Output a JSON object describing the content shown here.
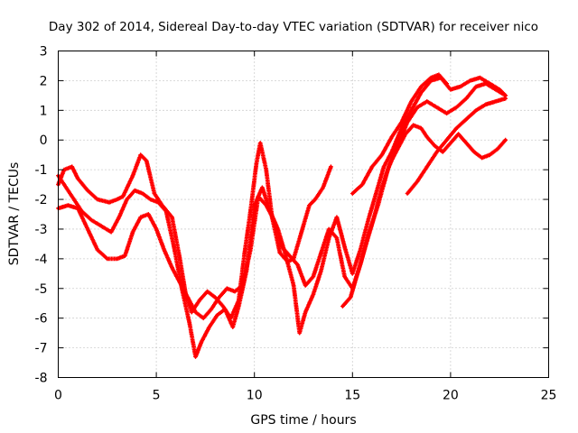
{
  "chart_data": {
    "type": "scatter",
    "title": "Day 302 of 2014, Sidereal Day-to-day VTEC variation (SDTVAR) for receiver nico",
    "xlabel": "GPS time / hours",
    "ylabel": "SDTVAR / TECUs",
    "xlim": [
      0,
      25
    ],
    "ylim": [
      -8,
      3
    ],
    "xticks": [
      "0",
      "5",
      "10",
      "15",
      "20",
      "25"
    ],
    "yticks": [
      "-8",
      "-7",
      "-6",
      "-5",
      "-4",
      "-3",
      "-2",
      "-1",
      "0",
      "1",
      "2",
      "3"
    ],
    "grid": true,
    "marker": "+",
    "colors": {
      "series": "#ff0000",
      "frame": "#000000",
      "grid": "#a0a0a0"
    },
    "series": [
      {
        "values": [
          [
            0.0,
            -1.5
          ],
          [
            0.3,
            -1.0
          ],
          [
            0.7,
            -0.9
          ],
          [
            1.0,
            -1.3
          ],
          [
            1.5,
            -1.7
          ],
          [
            2.0,
            -2.0
          ],
          [
            2.6,
            -2.1
          ],
          [
            3.0,
            -2.0
          ],
          [
            3.3,
            -1.9
          ],
          [
            3.8,
            -1.2
          ],
          [
            4.2,
            -0.5
          ],
          [
            4.5,
            -0.7
          ],
          [
            4.9,
            -1.8
          ],
          [
            5.3,
            -2.2
          ],
          [
            5.8,
            -2.6
          ],
          [
            6.2,
            -4.0
          ],
          [
            6.5,
            -5.2
          ],
          [
            6.8,
            -5.8
          ],
          [
            7.2,
            -5.4
          ],
          [
            7.6,
            -5.1
          ],
          [
            8.0,
            -5.3
          ],
          [
            8.4,
            -5.6
          ],
          [
            8.8,
            -6.0
          ],
          [
            9.2,
            -5.4
          ],
          [
            9.5,
            -3.8
          ],
          [
            9.8,
            -2.4
          ],
          [
            10.1,
            -0.8
          ],
          [
            10.3,
            -0.1
          ],
          [
            10.6,
            -1.0
          ],
          [
            10.9,
            -2.6
          ],
          [
            11.3,
            -3.8
          ],
          [
            11.7,
            -4.1
          ],
          [
            12.0,
            -4.0
          ],
          [
            12.4,
            -3.1
          ],
          [
            12.8,
            -2.2
          ],
          [
            13.1,
            -2.0
          ],
          [
            13.5,
            -1.6
          ],
          [
            13.9,
            -0.9
          ]
        ]
      },
      {
        "values": [
          [
            0.0,
            -1.2
          ],
          [
            0.4,
            -1.6
          ],
          [
            0.8,
            -2.0
          ],
          [
            1.2,
            -2.4
          ],
          [
            1.7,
            -2.7
          ],
          [
            2.2,
            -2.9
          ],
          [
            2.7,
            -3.1
          ],
          [
            3.1,
            -2.6
          ],
          [
            3.5,
            -2.0
          ],
          [
            3.9,
            -1.7
          ],
          [
            4.3,
            -1.8
          ],
          [
            4.7,
            -2.0
          ],
          [
            5.1,
            -2.1
          ],
          [
            5.5,
            -2.4
          ],
          [
            5.9,
            -3.6
          ],
          [
            6.3,
            -5.0
          ],
          [
            6.7,
            -6.2
          ],
          [
            7.0,
            -7.3
          ],
          [
            7.3,
            -6.8
          ],
          [
            7.7,
            -6.3
          ],
          [
            8.1,
            -5.9
          ],
          [
            8.5,
            -5.7
          ],
          [
            8.9,
            -6.3
          ],
          [
            9.2,
            -5.6
          ],
          [
            9.6,
            -4.4
          ],
          [
            10.0,
            -2.2
          ],
          [
            10.4,
            -1.6
          ],
          [
            10.8,
            -2.4
          ],
          [
            11.2,
            -3.0
          ],
          [
            11.6,
            -3.9
          ],
          [
            12.0,
            -4.9
          ],
          [
            12.3,
            -6.5
          ],
          [
            12.6,
            -5.8
          ],
          [
            13.0,
            -5.2
          ],
          [
            13.4,
            -4.4
          ],
          [
            13.8,
            -3.3
          ],
          [
            14.2,
            -2.6
          ],
          [
            14.6,
            -3.6
          ],
          [
            15.0,
            -4.5
          ],
          [
            15.4,
            -3.7
          ],
          [
            15.8,
            -2.7
          ],
          [
            16.2,
            -1.8
          ],
          [
            16.6,
            -0.9
          ],
          [
            17.0,
            -0.4
          ],
          [
            17.5,
            0.4
          ],
          [
            18.0,
            1.0
          ],
          [
            18.5,
            1.6
          ],
          [
            19.0,
            2.0
          ],
          [
            19.5,
            2.1
          ],
          [
            20.0,
            1.7
          ],
          [
            20.5,
            1.8
          ],
          [
            21.0,
            2.0
          ],
          [
            21.5,
            2.1
          ],
          [
            22.0,
            1.9
          ],
          [
            22.5,
            1.7
          ],
          [
            22.8,
            1.5
          ]
        ]
      },
      {
        "values": [
          [
            0.0,
            -2.3
          ],
          [
            0.5,
            -2.2
          ],
          [
            1.0,
            -2.3
          ],
          [
            1.5,
            -3.0
          ],
          [
            2.0,
            -3.7
          ],
          [
            2.5,
            -4.0
          ],
          [
            3.0,
            -4.0
          ],
          [
            3.4,
            -3.9
          ],
          [
            3.8,
            -3.1
          ],
          [
            4.2,
            -2.6
          ],
          [
            4.6,
            -2.5
          ],
          [
            5.0,
            -3.0
          ],
          [
            5.4,
            -3.7
          ],
          [
            5.8,
            -4.3
          ],
          [
            6.2,
            -4.8
          ],
          [
            6.6,
            -5.3
          ],
          [
            7.0,
            -5.8
          ],
          [
            7.4,
            -6.0
          ],
          [
            7.8,
            -5.7
          ],
          [
            8.2,
            -5.3
          ],
          [
            8.6,
            -5.0
          ],
          [
            9.0,
            -5.1
          ],
          [
            9.4,
            -4.9
          ],
          [
            9.8,
            -3.7
          ],
          [
            10.2,
            -1.9
          ],
          [
            10.6,
            -2.2
          ],
          [
            11.0,
            -2.7
          ],
          [
            11.4,
            -3.6
          ],
          [
            11.8,
            -3.9
          ],
          [
            12.2,
            -4.2
          ],
          [
            12.6,
            -4.9
          ],
          [
            13.0,
            -4.6
          ],
          [
            13.4,
            -3.8
          ],
          [
            13.8,
            -3.0
          ],
          [
            14.2,
            -3.3
          ],
          [
            14.6,
            -4.6
          ],
          [
            15.0,
            -5.0
          ],
          [
            15.4,
            -4.2
          ],
          [
            15.8,
            -3.2
          ],
          [
            16.3,
            -2.2
          ],
          [
            16.8,
            -1.0
          ],
          [
            17.3,
            -0.2
          ],
          [
            17.8,
            0.6
          ],
          [
            18.3,
            1.1
          ],
          [
            18.8,
            1.3
          ],
          [
            19.3,
            1.1
          ],
          [
            19.8,
            0.9
          ],
          [
            20.3,
            1.1
          ],
          [
            20.8,
            1.4
          ],
          [
            21.3,
            1.8
          ],
          [
            21.8,
            1.9
          ],
          [
            22.3,
            1.7
          ],
          [
            22.8,
            1.5
          ]
        ]
      },
      {
        "values": [
          [
            14.5,
            -5.6
          ],
          [
            14.9,
            -5.3
          ],
          [
            15.3,
            -4.4
          ],
          [
            15.7,
            -3.5
          ],
          [
            16.1,
            -2.6
          ],
          [
            16.5,
            -1.6
          ],
          [
            16.9,
            -0.8
          ],
          [
            17.3,
            -0.3
          ],
          [
            17.7,
            0.2
          ],
          [
            18.1,
            0.5
          ],
          [
            18.5,
            0.4
          ],
          [
            18.8,
            0.1
          ],
          [
            19.2,
            -0.2
          ],
          [
            19.6,
            -0.4
          ],
          [
            20.0,
            -0.1
          ],
          [
            20.4,
            0.2
          ],
          [
            20.8,
            -0.1
          ],
          [
            21.2,
            -0.4
          ],
          [
            21.6,
            -0.6
          ],
          [
            22.0,
            -0.5
          ],
          [
            22.4,
            -0.3
          ],
          [
            22.8,
            0.0
          ]
        ]
      },
      {
        "values": [
          [
            17.8,
            -1.8
          ],
          [
            18.3,
            -1.4
          ],
          [
            18.8,
            -0.9
          ],
          [
            19.3,
            -0.4
          ],
          [
            19.8,
            0.0
          ],
          [
            20.3,
            0.4
          ],
          [
            20.8,
            0.7
          ],
          [
            21.3,
            1.0
          ],
          [
            21.8,
            1.2
          ],
          [
            22.3,
            1.3
          ],
          [
            22.8,
            1.4
          ]
        ]
      },
      {
        "values": [
          [
            15.0,
            -1.8
          ],
          [
            15.5,
            -1.5
          ],
          [
            16.0,
            -0.9
          ],
          [
            16.5,
            -0.5
          ],
          [
            17.0,
            0.1
          ],
          [
            17.5,
            0.6
          ],
          [
            18.0,
            1.3
          ],
          [
            18.5,
            1.8
          ],
          [
            19.0,
            2.1
          ],
          [
            19.4,
            2.2
          ],
          [
            19.8,
            1.9
          ]
        ]
      }
    ]
  }
}
